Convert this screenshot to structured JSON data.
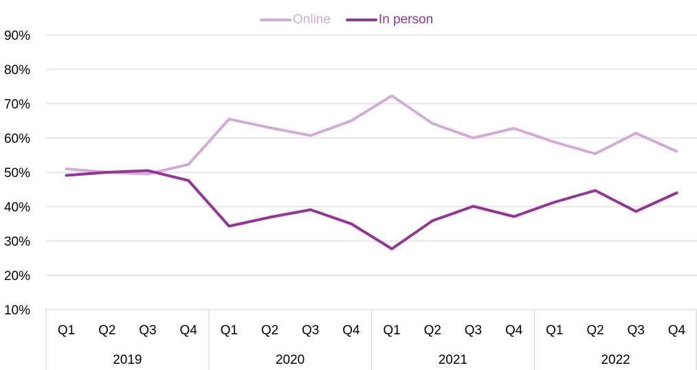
{
  "chart_data": {
    "type": "line",
    "title": "",
    "xlabel": "",
    "ylabel": "",
    "ylim": [
      10,
      90
    ],
    "y_ticks": [
      "10%",
      "20%",
      "30%",
      "40%",
      "50%",
      "60%",
      "70%",
      "80%",
      "90%"
    ],
    "y_tick_values": [
      10,
      20,
      30,
      40,
      50,
      60,
      70,
      80,
      90
    ],
    "grid": true,
    "legend_position": "top-center",
    "quarters": [
      "Q1",
      "Q2",
      "Q3",
      "Q4",
      "Q1",
      "Q2",
      "Q3",
      "Q4",
      "Q1",
      "Q2",
      "Q3",
      "Q4",
      "Q1",
      "Q2",
      "Q3",
      "Q4"
    ],
    "years": [
      "2019",
      "2020",
      "2021",
      "2022"
    ],
    "series": [
      {
        "name": "Online",
        "color": "#d4aad6",
        "values": [
          51.0,
          50.0,
          49.5,
          52.3,
          65.5,
          63.0,
          60.7,
          65.0,
          72.3,
          64.2,
          60.0,
          62.8,
          58.8,
          55.4,
          61.4,
          56.1
        ]
      },
      {
        "name": "In person",
        "color": "#943497",
        "values": [
          49.1,
          50.0,
          50.5,
          47.6,
          34.3,
          36.9,
          39.1,
          35.0,
          27.7,
          35.9,
          40.1,
          37.1,
          41.3,
          44.7,
          38.6,
          44.0
        ]
      }
    ]
  }
}
